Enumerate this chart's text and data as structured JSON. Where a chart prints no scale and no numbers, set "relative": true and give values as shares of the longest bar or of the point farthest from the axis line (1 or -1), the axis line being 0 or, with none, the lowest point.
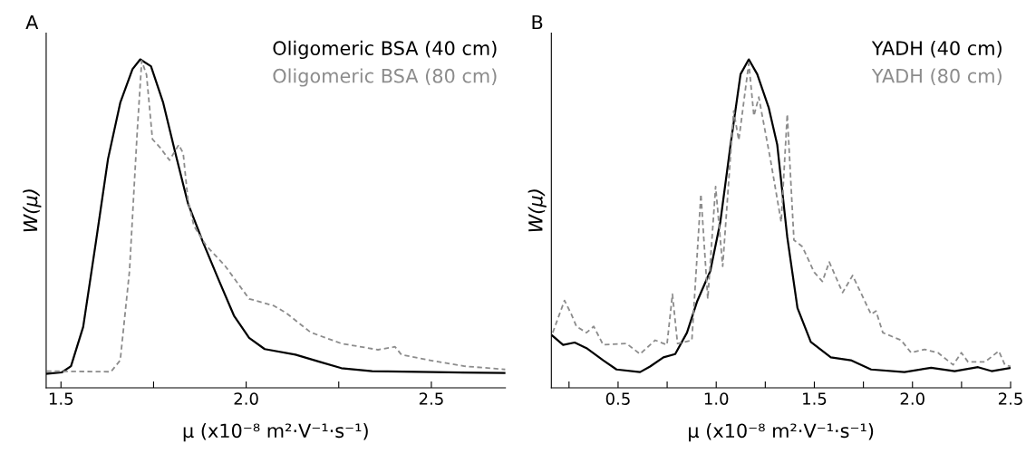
{
  "chart_data": [
    {
      "type": "line",
      "title": "A",
      "xlabel": "μ (x10⁻⁸ m²·V⁻¹·s⁻¹)",
      "ylabel": "W(μ)",
      "relative": true,
      "legend": "top right",
      "xlim": [
        1.46,
        2.7
      ],
      "xticks": [
        {
          "value": 1.5,
          "label": "1.5"
        },
        {
          "value": 1.75,
          "label": null
        },
        {
          "value": 2,
          "label": "2.0"
        },
        {
          "value": 2.25,
          "label": null
        },
        {
          "value": 2.5,
          "label": "2.5"
        }
      ],
      "series": [
        {
          "name": "Oligomeric BSA (40 cm)",
          "color": "#000000",
          "line_style": "solid",
          "x": [
            1.461,
            1.502,
            1.527,
            1.56,
            1.594,
            1.627,
            1.66,
            1.693,
            1.714,
            1.743,
            1.776,
            1.809,
            1.843,
            1.884,
            1.925,
            1.967,
            2.008,
            2.05,
            2.133,
            2.199,
            2.257,
            2.34,
            2.506,
            2.7
          ],
          "values": [
            0.043,
            0.047,
            0.066,
            0.186,
            0.442,
            0.697,
            0.868,
            0.97,
            1.0,
            0.979,
            0.868,
            0.714,
            0.561,
            0.442,
            0.331,
            0.22,
            0.152,
            0.118,
            0.101,
            0.079,
            0.06,
            0.051,
            0.048,
            0.045
          ]
        },
        {
          "name": "Oligomeric BSA (80 cm)",
          "color": "#8c8c8c",
          "line_style": "dashed",
          "x": [
            1.461,
            1.635,
            1.66,
            1.685,
            1.706,
            1.718,
            1.731,
            1.747,
            1.768,
            1.793,
            1.818,
            1.83,
            1.843,
            1.859,
            1.892,
            1.942,
            2.008,
            2.075,
            2.108,
            2.174,
            2.257,
            2.356,
            2.402,
            2.419,
            2.506,
            2.589,
            2.7
          ],
          "values": [
            0.051,
            0.049,
            0.084,
            0.356,
            0.783,
            0.996,
            0.953,
            0.757,
            0.731,
            0.693,
            0.74,
            0.714,
            0.57,
            0.493,
            0.433,
            0.373,
            0.271,
            0.25,
            0.228,
            0.169,
            0.135,
            0.116,
            0.125,
            0.101,
            0.082,
            0.066,
            0.056
          ]
        }
      ]
    },
    {
      "type": "line",
      "title": "B",
      "xlabel": "μ (x10⁻⁸ m²·V⁻¹·s⁻¹)",
      "ylabel": "W(μ)",
      "relative": true,
      "legend": "top right",
      "xlim": [
        0.16,
        2.5
      ],
      "xticks": [
        {
          "value": 0.25,
          "label": null
        },
        {
          "value": 0.5,
          "label": "0.5"
        },
        {
          "value": 0.75,
          "label": null
        },
        {
          "value": 1,
          "label": "1.0"
        },
        {
          "value": 1.25,
          "label": null
        },
        {
          "value": 1.5,
          "label": "1.5"
        },
        {
          "value": 1.75,
          "label": null
        },
        {
          "value": 2,
          "label": "2.0"
        },
        {
          "value": 2.25,
          "label": null
        },
        {
          "value": 2.5,
          "label": "2.5"
        }
      ],
      "series": [
        {
          "name": "YADH (40 cm)",
          "color": "#000000",
          "line_style": "solid",
          "x": [
            0.165,
            0.22,
            0.279,
            0.339,
            0.424,
            0.492,
            0.612,
            0.663,
            0.731,
            0.791,
            0.851,
            0.902,
            0.97,
            1.021,
            1.073,
            1.124,
            1.166,
            1.209,
            1.268,
            1.311,
            1.362,
            1.414,
            1.482,
            1.584,
            1.686,
            1.789,
            1.959,
            2.095,
            2.215,
            2.334,
            2.403,
            2.5
          ],
          "values": [
            0.159,
            0.131,
            0.138,
            0.121,
            0.084,
            0.056,
            0.048,
            0.065,
            0.093,
            0.103,
            0.168,
            0.262,
            0.356,
            0.505,
            0.74,
            0.955,
            1.0,
            0.955,
            0.852,
            0.74,
            0.459,
            0.243,
            0.14,
            0.093,
            0.084,
            0.056,
            0.048,
            0.061,
            0.051,
            0.063,
            0.051,
            0.061
          ]
        },
        {
          "name": "YADH (80 cm)",
          "color": "#8c8c8c",
          "line_style": "dashed",
          "x": [
            0.167,
            0.227,
            0.262,
            0.288,
            0.339,
            0.376,
            0.424,
            0.543,
            0.612,
            0.689,
            0.749,
            0.777,
            0.803,
            0.876,
            0.922,
            0.957,
            0.997,
            1.033,
            1.089,
            1.115,
            1.166,
            1.192,
            1.217,
            1.277,
            1.331,
            1.362,
            1.396,
            1.439,
            1.499,
            1.541,
            1.576,
            1.644,
            1.695,
            1.789,
            1.814,
            1.849,
            1.942,
            1.993,
            2.062,
            2.13,
            2.207,
            2.249,
            2.283,
            2.369,
            2.44,
            2.471,
            2.5
          ],
          "values": [
            0.168,
            0.266,
            0.224,
            0.187,
            0.168,
            0.187,
            0.131,
            0.135,
            0.103,
            0.145,
            0.131,
            0.285,
            0.135,
            0.145,
            0.59,
            0.271,
            0.613,
            0.37,
            0.843,
            0.754,
            0.988,
            0.828,
            0.885,
            0.693,
            0.505,
            0.833,
            0.45,
            0.43,
            0.352,
            0.324,
            0.383,
            0.29,
            0.342,
            0.224,
            0.234,
            0.168,
            0.145,
            0.107,
            0.117,
            0.107,
            0.07,
            0.107,
            0.079,
            0.079,
            0.112,
            0.07,
            0.065
          ]
        }
      ]
    }
  ]
}
